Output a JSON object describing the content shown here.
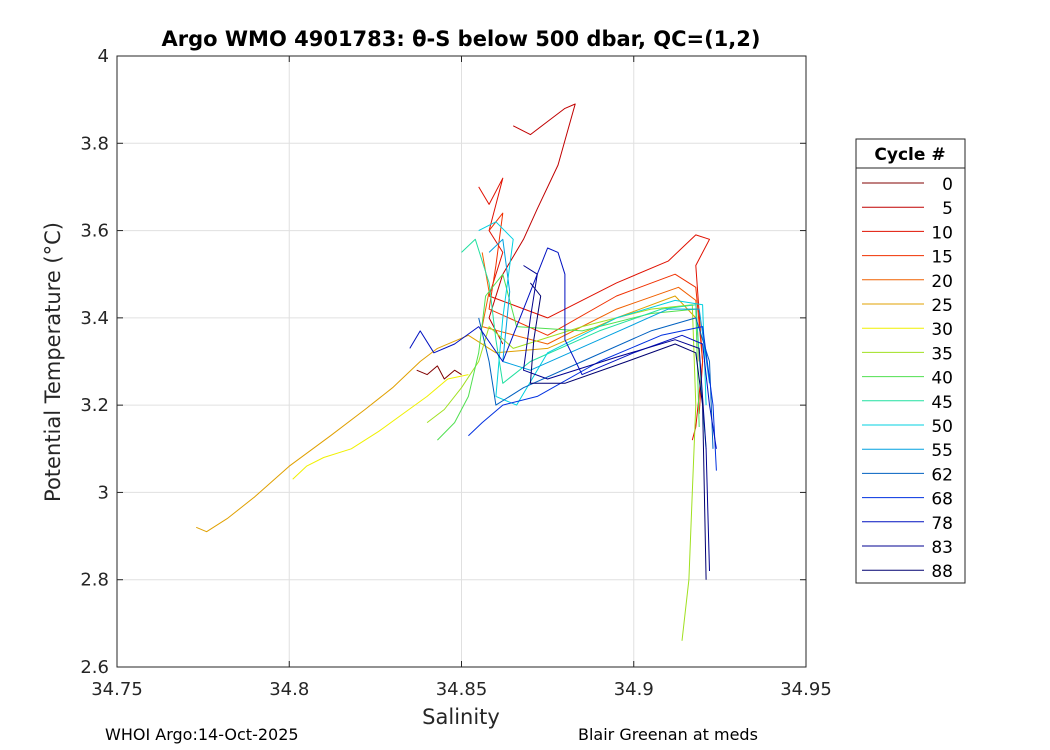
{
  "chart_data": {
    "type": "line",
    "title": "Argo WMO 4901783: θ-S below 500 dbar,  QC=(1,2)",
    "xlabel": "Salinity",
    "ylabel": "Potential Temperature (°C)",
    "xlim": [
      34.75,
      34.95
    ],
    "ylim": [
      2.6,
      4.0
    ],
    "xticks": [
      34.75,
      34.8,
      34.85,
      34.9,
      34.95
    ],
    "xtick_labels": [
      "34.75",
      "34.8",
      "34.85",
      "34.9",
      "34.95"
    ],
    "yticks": [
      2.6,
      2.8,
      3.0,
      3.2,
      3.4,
      3.6,
      3.8,
      4.0
    ],
    "ytick_labels": [
      "2.6",
      "2.8",
      "3",
      "3.2",
      "3.4",
      "3.6",
      "3.8",
      "4"
    ],
    "grid": true,
    "legend": {
      "title": "Cycle #",
      "placement": "outside-right",
      "entries": [
        {
          "label": "0",
          "color": "#800000"
        },
        {
          "label": "5",
          "color": "#c00000"
        },
        {
          "label": "10",
          "color": "#e01000"
        },
        {
          "label": "15",
          "color": "#f03000"
        },
        {
          "label": "20",
          "color": "#f06000"
        },
        {
          "label": "25",
          "color": "#e0a000"
        },
        {
          "label": "30",
          "color": "#f0f000"
        },
        {
          "label": "35",
          "color": "#a0e020"
        },
        {
          "label": "40",
          "color": "#50e050"
        },
        {
          "label": "45",
          "color": "#20e0a0"
        },
        {
          "label": "50",
          "color": "#00d0e0"
        },
        {
          "label": "55",
          "color": "#00a0e0"
        },
        {
          "label": "62",
          "color": "#0060c0"
        },
        {
          "label": "68",
          "color": "#0030e0"
        },
        {
          "label": "78",
          "color": "#0010c0"
        },
        {
          "label": "83",
          "color": "#000090"
        },
        {
          "label": "88",
          "color": "#000070"
        }
      ]
    },
    "series": [
      {
        "name": "0",
        "color": "#800000",
        "points": [
          [
            34.837,
            3.28
          ],
          [
            34.84,
            3.27
          ],
          [
            34.843,
            3.29
          ],
          [
            34.845,
            3.26
          ],
          [
            34.848,
            3.28
          ],
          [
            34.85,
            3.27
          ]
        ]
      },
      {
        "name": "5",
        "color": "#c00000",
        "points": [
          [
            34.865,
            3.84
          ],
          [
            34.87,
            3.82
          ],
          [
            34.875,
            3.85
          ],
          [
            34.88,
            3.88
          ],
          [
            34.883,
            3.89
          ],
          [
            34.878,
            3.75
          ],
          [
            34.872,
            3.65
          ],
          [
            34.868,
            3.58
          ],
          [
            34.862,
            3.5
          ],
          [
            34.858,
            3.4
          ],
          [
            34.862,
            3.34
          ]
        ]
      },
      {
        "name": "10",
        "color": "#e01000",
        "points": [
          [
            34.855,
            3.7
          ],
          [
            34.858,
            3.66
          ],
          [
            34.862,
            3.72
          ],
          [
            34.858,
            3.6
          ],
          [
            34.862,
            3.55
          ],
          [
            34.858,
            3.45
          ],
          [
            34.875,
            3.4
          ],
          [
            34.895,
            3.48
          ],
          [
            34.91,
            3.53
          ],
          [
            34.918,
            3.59
          ],
          [
            34.922,
            3.58
          ],
          [
            34.918,
            3.52
          ],
          [
            34.92,
            3.3
          ],
          [
            34.918,
            3.15
          ],
          [
            34.917,
            3.12
          ]
        ]
      },
      {
        "name": "15",
        "color": "#f03000",
        "points": [
          [
            34.858,
            3.6
          ],
          [
            34.862,
            3.64
          ],
          [
            34.86,
            3.52
          ],
          [
            34.858,
            3.42
          ],
          [
            34.875,
            3.36
          ],
          [
            34.895,
            3.45
          ],
          [
            34.912,
            3.5
          ],
          [
            34.918,
            3.47
          ],
          [
            34.92,
            3.3
          ],
          [
            34.919,
            3.18
          ]
        ]
      },
      {
        "name": "20",
        "color": "#f06000",
        "points": [
          [
            34.856,
            3.55
          ],
          [
            34.858,
            3.46
          ],
          [
            34.856,
            3.38
          ],
          [
            34.875,
            3.34
          ],
          [
            34.895,
            3.42
          ],
          [
            34.913,
            3.47
          ],
          [
            34.918,
            3.44
          ],
          [
            34.919,
            3.3
          ]
        ]
      },
      {
        "name": "25",
        "color": "#e0a000",
        "points": [
          [
            34.773,
            2.92
          ],
          [
            34.776,
            2.91
          ],
          [
            34.782,
            2.94
          ],
          [
            34.79,
            2.99
          ],
          [
            34.8,
            3.06
          ],
          [
            34.812,
            3.13
          ],
          [
            34.822,
            3.19
          ],
          [
            34.83,
            3.24
          ],
          [
            34.838,
            3.3
          ],
          [
            34.843,
            3.33
          ],
          [
            34.852,
            3.36
          ],
          [
            34.86,
            3.32
          ],
          [
            34.875,
            3.33
          ],
          [
            34.895,
            3.4
          ],
          [
            34.912,
            3.45
          ],
          [
            34.918,
            3.4
          ]
        ]
      },
      {
        "name": "30",
        "color": "#f0f000",
        "points": [
          [
            34.801,
            3.03
          ],
          [
            34.805,
            3.06
          ],
          [
            34.81,
            3.08
          ],
          [
            34.818,
            3.1
          ],
          [
            34.826,
            3.14
          ],
          [
            34.833,
            3.18
          ],
          [
            34.84,
            3.22
          ],
          [
            34.846,
            3.26
          ],
          [
            34.852,
            3.27
          ]
        ]
      },
      {
        "name": "35",
        "color": "#a0e020",
        "points": [
          [
            34.84,
            3.16
          ],
          [
            34.845,
            3.19
          ],
          [
            34.85,
            3.24
          ],
          [
            34.855,
            3.3
          ],
          [
            34.858,
            3.38
          ],
          [
            34.865,
            3.33
          ],
          [
            34.885,
            3.38
          ],
          [
            34.905,
            3.42
          ],
          [
            34.917,
            3.43
          ],
          [
            34.918,
            3.2
          ],
          [
            34.917,
            3.0
          ],
          [
            34.916,
            2.8
          ],
          [
            34.914,
            2.66
          ]
        ]
      },
      {
        "name": "40",
        "color": "#50e050",
        "points": [
          [
            34.843,
            3.12
          ],
          [
            34.848,
            3.16
          ],
          [
            34.852,
            3.22
          ],
          [
            34.855,
            3.32
          ],
          [
            34.857,
            3.45
          ],
          [
            34.862,
            3.5
          ],
          [
            34.866,
            3.38
          ],
          [
            34.885,
            3.37
          ],
          [
            34.905,
            3.41
          ],
          [
            34.918,
            3.42
          ],
          [
            34.919,
            3.15
          ]
        ]
      },
      {
        "name": "45",
        "color": "#20e0a0",
        "points": [
          [
            34.85,
            3.55
          ],
          [
            34.854,
            3.58
          ],
          [
            34.858,
            3.48
          ],
          [
            34.86,
            3.35
          ],
          [
            34.862,
            3.25
          ],
          [
            34.87,
            3.3
          ],
          [
            34.89,
            3.37
          ],
          [
            34.908,
            3.42
          ],
          [
            34.918,
            3.43
          ],
          [
            34.92,
            3.2
          ],
          [
            34.921,
            3.1
          ]
        ]
      },
      {
        "name": "50",
        "color": "#00d0e0",
        "points": [
          [
            34.855,
            3.6
          ],
          [
            34.86,
            3.62
          ],
          [
            34.865,
            3.58
          ],
          [
            34.862,
            3.4
          ],
          [
            34.86,
            3.22
          ],
          [
            34.866,
            3.2
          ],
          [
            34.875,
            3.32
          ],
          [
            34.895,
            3.4
          ],
          [
            34.912,
            3.44
          ],
          [
            34.92,
            3.43
          ],
          [
            34.921,
            3.2
          ]
        ]
      },
      {
        "name": "55",
        "color": "#00a0e0",
        "points": [
          [
            34.858,
            3.55
          ],
          [
            34.862,
            3.58
          ],
          [
            34.864,
            3.46
          ],
          [
            34.862,
            3.3
          ],
          [
            34.87,
            3.28
          ],
          [
            34.89,
            3.35
          ],
          [
            34.91,
            3.42
          ],
          [
            34.919,
            3.42
          ],
          [
            34.922,
            3.25
          ]
        ]
      },
      {
        "name": "62",
        "color": "#0060c0",
        "points": [
          [
            34.855,
            3.4
          ],
          [
            34.858,
            3.3
          ],
          [
            34.86,
            3.2
          ],
          [
            34.868,
            3.24
          ],
          [
            34.885,
            3.3
          ],
          [
            34.905,
            3.37
          ],
          [
            34.918,
            3.4
          ],
          [
            34.922,
            3.3
          ],
          [
            34.923,
            3.1
          ]
        ]
      },
      {
        "name": "68",
        "color": "#0030e0",
        "points": [
          [
            34.852,
            3.13
          ],
          [
            34.856,
            3.16
          ],
          [
            34.862,
            3.2
          ],
          [
            34.872,
            3.22
          ],
          [
            34.89,
            3.3
          ],
          [
            34.908,
            3.36
          ],
          [
            34.92,
            3.38
          ],
          [
            34.923,
            3.2
          ],
          [
            34.924,
            3.05
          ]
        ]
      },
      {
        "name": "78",
        "color": "#0010c0",
        "points": [
          [
            34.835,
            3.33
          ],
          [
            34.838,
            3.37
          ],
          [
            34.842,
            3.32
          ],
          [
            34.848,
            3.34
          ],
          [
            34.855,
            3.38
          ],
          [
            34.862,
            3.3
          ],
          [
            34.875,
            3.56
          ],
          [
            34.878,
            3.55
          ],
          [
            34.88,
            3.5
          ],
          [
            34.88,
            3.35
          ],
          [
            34.885,
            3.27
          ],
          [
            34.9,
            3.32
          ],
          [
            34.914,
            3.36
          ],
          [
            34.92,
            3.34
          ],
          [
            34.922,
            3.2
          ],
          [
            34.924,
            3.1
          ]
        ]
      },
      {
        "name": "83",
        "color": "#000090",
        "points": [
          [
            34.868,
            3.52
          ],
          [
            34.872,
            3.5
          ],
          [
            34.87,
            3.4
          ],
          [
            34.868,
            3.28
          ],
          [
            34.875,
            3.26
          ],
          [
            34.895,
            3.31
          ],
          [
            34.912,
            3.35
          ],
          [
            34.919,
            3.33
          ],
          [
            34.921,
            3.1
          ],
          [
            34.922,
            2.82
          ]
        ]
      },
      {
        "name": "88",
        "color": "#000070",
        "points": [
          [
            34.87,
            3.48
          ],
          [
            34.873,
            3.45
          ],
          [
            34.871,
            3.35
          ],
          [
            34.87,
            3.25
          ],
          [
            34.88,
            3.25
          ],
          [
            34.898,
            3.3
          ],
          [
            34.912,
            3.34
          ],
          [
            34.918,
            3.32
          ],
          [
            34.92,
            3.2
          ],
          [
            34.921,
            2.8
          ]
        ]
      }
    ]
  },
  "footer": {
    "left": "WHOI Argo:14-Oct-2025",
    "right": "Blair Greenan at meds"
  }
}
